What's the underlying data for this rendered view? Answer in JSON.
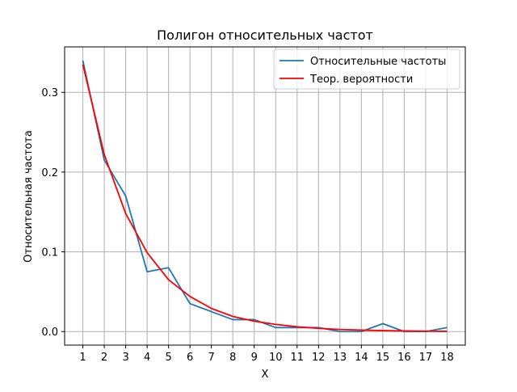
{
  "chart_data": {
    "type": "line",
    "title": "Полигон относительных частот",
    "xlabel": "X",
    "ylabel": "Относительная частота",
    "x": [
      1,
      2,
      3,
      4,
      5,
      6,
      7,
      8,
      9,
      10,
      11,
      12,
      13,
      14,
      15,
      16,
      17,
      18
    ],
    "xticks": [
      "1",
      "2",
      "3",
      "4",
      "5",
      "6",
      "7",
      "8",
      "9",
      "10",
      "11",
      "12",
      "13",
      "14",
      "15",
      "16",
      "17",
      "18"
    ],
    "yticks": [
      "0.0",
      "0.1",
      "0.2",
      "0.3"
    ],
    "xlim": [
      0.15,
      18.85
    ],
    "ylim": [
      -0.017,
      0.357
    ],
    "grid": true,
    "legend_position": "top-right",
    "series": [
      {
        "name": "Относительные частоты",
        "color": "#1f77b4",
        "values": [
          0.34,
          0.215,
          0.17,
          0.075,
          0.08,
          0.035,
          0.025,
          0.015,
          0.015,
          0.005,
          0.005,
          0.005,
          0.0,
          0.0,
          0.01,
          0.0,
          0.0,
          0.005
        ]
      },
      {
        "name": "Теор. вероятности",
        "color": "#ff0000",
        "values": [
          0.335,
          0.222,
          0.148,
          0.099,
          0.065,
          0.044,
          0.029,
          0.019,
          0.013,
          0.009,
          0.006,
          0.004,
          0.0026,
          0.0018,
          0.0012,
          0.0008,
          0.0005,
          0.0003
        ]
      }
    ]
  }
}
